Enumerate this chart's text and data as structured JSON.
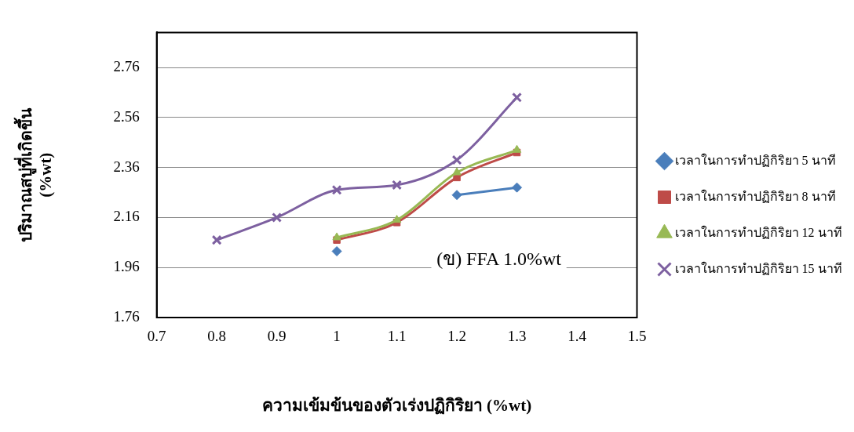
{
  "chart_data": {
    "type": "line",
    "xlabel": "ความเข้มข้นของตัวเร่งปฏิกิริยา (%wt)",
    "ylabel": "ปริมาณสบู่ที่เกิดขึ้น\n(%wt)",
    "annotations": [
      "(ข) FFA 1.0%wt"
    ],
    "x": [
      0.8,
      0.9,
      1.0,
      1.1,
      1.2,
      1.3
    ],
    "series": [
      {
        "name": "เวลาในการทำปฏิกิริยา 5 นาที",
        "color": "#4a7ebb",
        "marker": "diamond",
        "values": [
          null,
          null,
          2.025,
          null,
          2.25,
          2.28
        ]
      },
      {
        "name": "เวลาในการทำปฏิกิริยา 8 นาที",
        "color": "#be4b48",
        "marker": "square",
        "values": [
          null,
          null,
          2.07,
          2.14,
          2.32,
          2.42
        ]
      },
      {
        "name": "เวลาในการทำปฏิกิริยา 12 นาที",
        "color": "#98b954",
        "marker": "triangle",
        "values": [
          null,
          null,
          2.08,
          2.15,
          2.34,
          2.43
        ]
      },
      {
        "name": "เวลาในการทำปฏิกิริยา 15 นาที",
        "color": "#7d60a0",
        "marker": "cross",
        "values": [
          2.07,
          2.16,
          2.27,
          2.29,
          2.39,
          2.64
        ]
      }
    ],
    "xlim": [
      0.7,
      1.5
    ],
    "xticks": [
      0.7,
      0.8,
      0.9,
      1,
      1.1,
      1.2,
      1.3,
      1.4,
      1.5
    ],
    "ylim": [
      1.76,
      2.9
    ],
    "yticks": [
      1.76,
      1.96,
      2.16,
      2.36,
      2.56,
      2.76
    ],
    "grid": "y",
    "legend": "right"
  }
}
